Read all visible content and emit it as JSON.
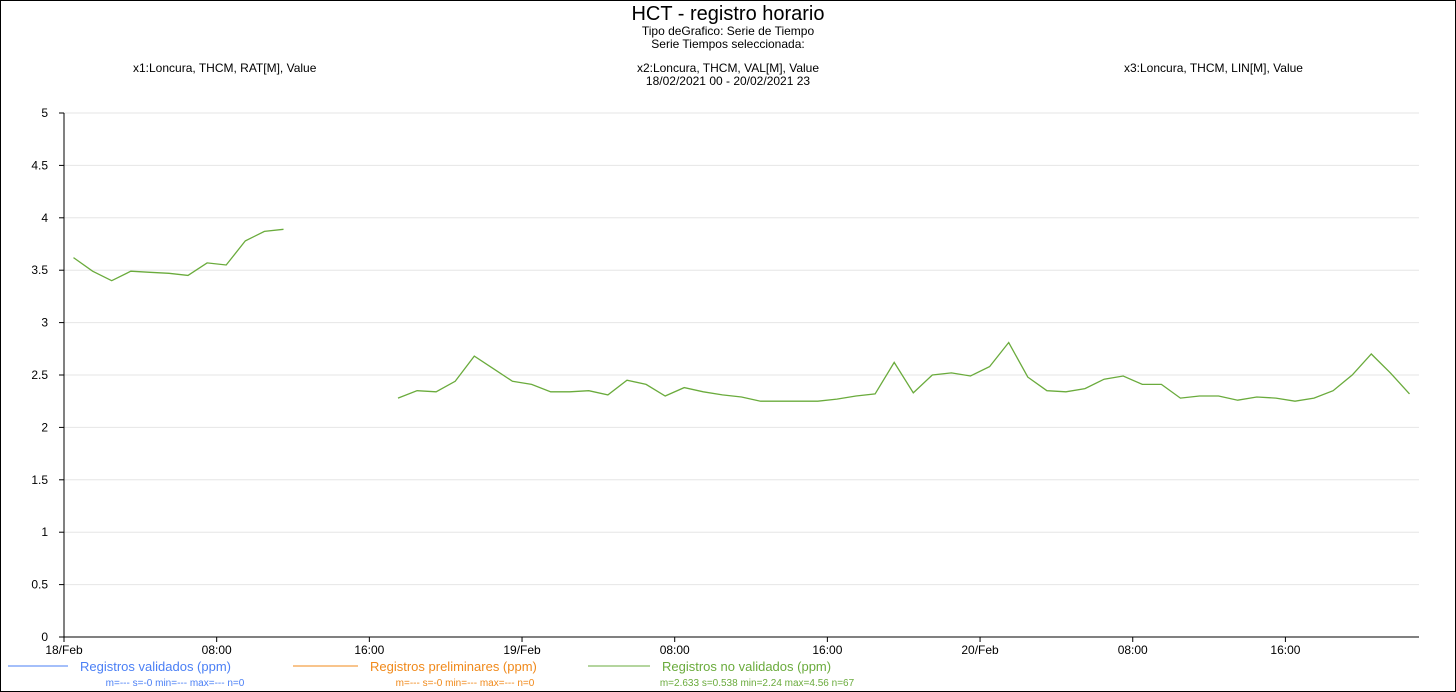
{
  "header": {
    "title": "HCT - registro horario",
    "subtitle1": "Tipo deGrafico: Serie de Tiempo",
    "subtitle2": "Serie Tiempos seleccionada:",
    "series_x1": "x1:Loncura, THCM, RAT[M], Value",
    "series_x2": "x2:Loncura, THCM, VAL[M], Value",
    "date_range": "18/02/2021 00 - 20/02/2021 23",
    "series_x3": "x3:Loncura, THCM, LIN[M], Value"
  },
  "legend": [
    {
      "label": "Registros validados (ppm)",
      "stats": "m=--- s=-0 min=--- max=--- n=0",
      "color": "#4a7ff5"
    },
    {
      "label": "Registros preliminares (ppm)",
      "stats": "m=--- s=-0 min=--- max=--- n=0",
      "color": "#f0891a"
    },
    {
      "label": "Registros no validados (ppm)",
      "stats": "m=2.633 s=0.538 min=2.24 max=4.56 n=67",
      "color": "#6aab3c"
    }
  ],
  "chart_data": {
    "type": "line",
    "ylim": [
      0,
      5
    ],
    "yticks": [
      0,
      0.5,
      1,
      1.5,
      2,
      2.5,
      3,
      3.5,
      4,
      4.5,
      5
    ],
    "ytick_labels": [
      "0",
      "0.5",
      "1",
      "1.5",
      "2",
      "2.5",
      "3",
      "3.5",
      "4",
      "4.5",
      "5"
    ],
    "xlim_hours": [
      0,
      71
    ],
    "xticks": [
      {
        "hour": 0,
        "label": "18/Feb"
      },
      {
        "hour": 8,
        "label": "08:00"
      },
      {
        "hour": 16,
        "label": "16:00"
      },
      {
        "hour": 24,
        "label": "19/Feb"
      },
      {
        "hour": 32,
        "label": "08:00"
      },
      {
        "hour": 40,
        "label": "16:00"
      },
      {
        "hour": 48,
        "label": "20/Feb"
      },
      {
        "hour": 56,
        "label": "08:00"
      },
      {
        "hour": 64,
        "label": "16:00"
      }
    ],
    "grid": true,
    "series": [
      {
        "name": "Registros no validados (ppm)",
        "color": "#6aab3c",
        "segments": [
          {
            "x": [
              0.5,
              1.5,
              2.5,
              3.5,
              4.5,
              5.5,
              6.5,
              7.5,
              8.5,
              9.5,
              10.5,
              11.5
            ],
            "y": [
              3.62,
              3.49,
              3.4,
              3.49,
              3.48,
              3.47,
              3.45,
              3.57,
              3.55,
              3.78,
              3.87,
              3.89
            ]
          },
          {
            "x": [
              17.5,
              18.5,
              19.5,
              20.5,
              21.5,
              22.5,
              23.5,
              24.5,
              25.5,
              26.5,
              27.5,
              28.5,
              29.5,
              30.5,
              31.5,
              32.5,
              33.5,
              34.5,
              35.5,
              36.5,
              37.5,
              38.5,
              39.5,
              40.5,
              41.5,
              42.5,
              43.5,
              44.5,
              45.5,
              46.5,
              47.5,
              48.5,
              49.5,
              50.5,
              51.5,
              52.5,
              53.5,
              54.5,
              55.5,
              56.5,
              57.5,
              58.5,
              59.5,
              60.5,
              61.5,
              62.5,
              63.5,
              64.5,
              65.5,
              66.5,
              67.5,
              68.5,
              69.5,
              70.5
            ],
            "y": [
              2.28,
              2.35,
              2.34,
              2.44,
              2.68,
              2.56,
              2.44,
              2.41,
              2.34,
              2.34,
              2.35,
              2.31,
              2.45,
              2.41,
              2.3,
              2.38,
              2.34,
              2.31,
              2.29,
              2.25,
              2.25,
              2.25,
              2.25,
              2.27,
              2.3,
              2.32,
              2.62,
              2.33,
              2.5,
              2.52,
              2.49,
              2.58,
              2.81,
              2.48,
              2.35,
              2.34,
              2.37,
              2.46,
              2.49,
              2.41,
              2.41,
              2.28,
              2.3,
              2.3,
              2.26,
              2.29,
              2.28,
              2.25,
              2.28,
              2.35,
              2.5,
              2.7,
              2.52,
              2.32
            ]
          }
        ]
      }
    ]
  }
}
